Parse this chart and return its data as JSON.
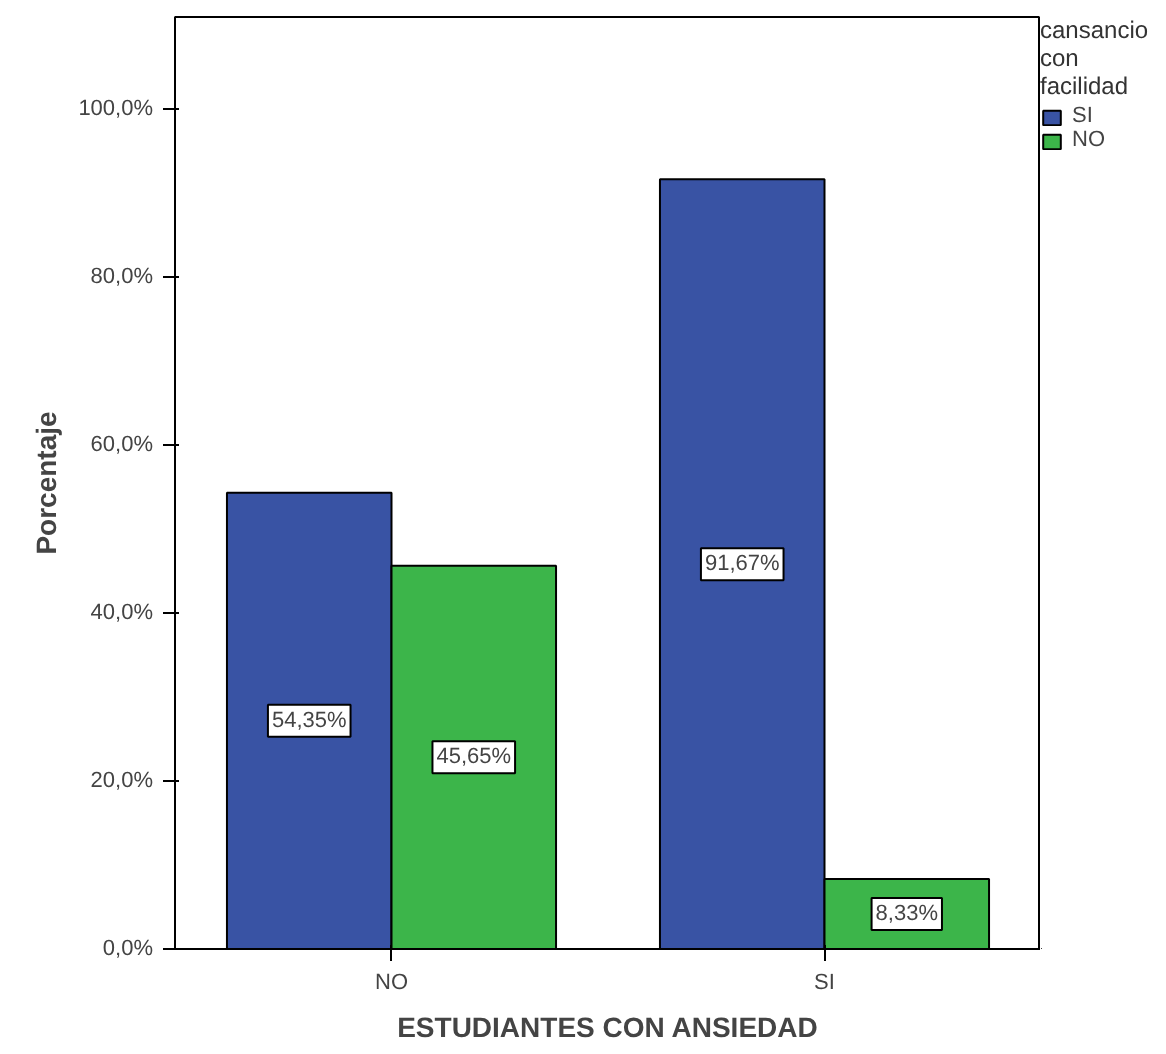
{
  "chart_data": {
    "type": "bar",
    "xlabel": "ESTUDIANTES CON ANSIEDAD",
    "ylabel": "Porcentaje",
    "legend_title": "cansancio con facilidad",
    "legend": "top right",
    "categories": [
      "NO",
      "SI"
    ],
    "series": [
      {
        "name": "SI",
        "color": "#3953a4",
        "values": [
          54.35,
          91.67
        ],
        "value_labels": [
          "54,35%",
          "91,67%"
        ]
      },
      {
        "name": "NO",
        "color": "#3cb54a",
        "values": [
          45.65,
          8.33
        ],
        "value_labels": [
          "45,65%",
          "8,33%"
        ]
      }
    ],
    "ylim": [
      0,
      111
    ],
    "yticks": [
      {
        "value": 0,
        "label": "0,0%"
      },
      {
        "value": 20,
        "label": "20,0%"
      },
      {
        "value": 40,
        "label": "40,0%"
      },
      {
        "value": 60,
        "label": "60,0%"
      },
      {
        "value": 80,
        "label": "80,0%"
      },
      {
        "value": 100,
        "label": "100,0%"
      }
    ],
    "grid": false
  }
}
